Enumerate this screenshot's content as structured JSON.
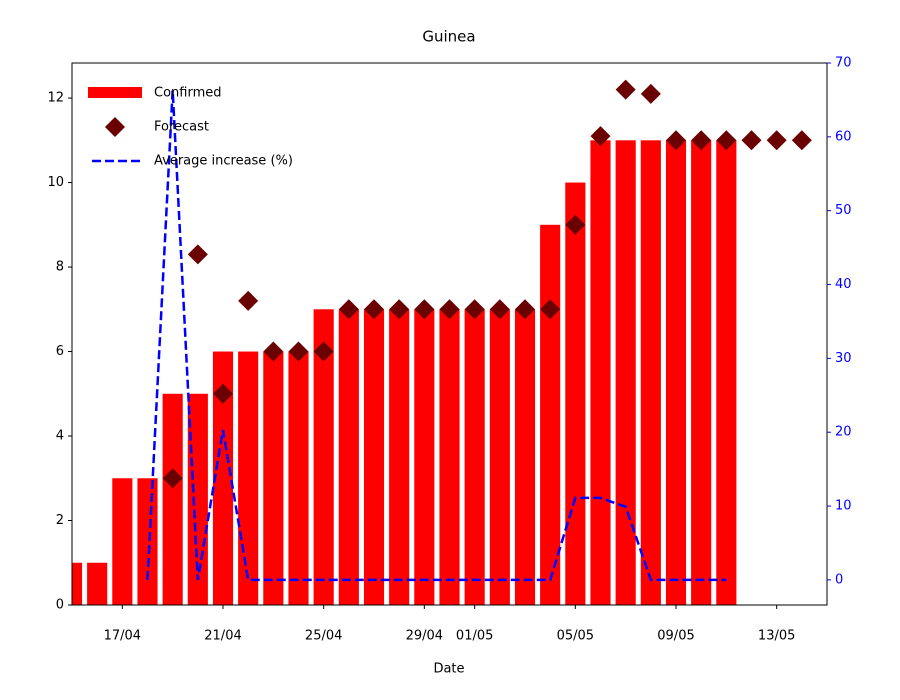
{
  "chart_data": {
    "type": "bar",
    "title": "Guinea",
    "xlabel": "Date",
    "x": [
      "15/04",
      "16/04",
      "17/04",
      "18/04",
      "19/04",
      "20/04",
      "21/04",
      "22/04",
      "23/04",
      "24/04",
      "25/04",
      "26/04",
      "27/04",
      "28/04",
      "29/04",
      "30/04",
      "01/05",
      "02/05",
      "03/05",
      "04/05",
      "05/05",
      "06/05",
      "07/05",
      "08/05",
      "09/05",
      "10/05",
      "11/05",
      "12/05",
      "13/05",
      "14/05"
    ],
    "series": [
      {
        "name": "Confirmed",
        "type": "bar",
        "color": "#ff0000",
        "values": [
          1,
          1,
          3,
          3,
          5,
          5,
          6,
          6,
          6,
          6,
          7,
          7,
          7,
          7,
          7,
          7,
          7,
          7,
          7,
          9,
          10,
          11,
          11,
          11,
          11,
          11,
          11,
          null,
          null,
          null
        ]
      },
      {
        "name": "Forecast",
        "type": "scatter",
        "color": "#6b0000",
        "values": [
          null,
          null,
          null,
          null,
          3,
          8.3,
          5,
          7.2,
          6,
          6,
          6,
          7,
          7,
          7,
          7,
          7,
          7,
          7,
          7,
          7,
          9,
          11.1,
          12.2,
          12.1,
          11,
          11,
          11,
          11,
          11,
          11
        ]
      },
      {
        "name": "Average increase (%)",
        "type": "line",
        "color": "#0000ff",
        "axis": "y2",
        "values": [
          null,
          null,
          null,
          0,
          66.3,
          0,
          20.3,
          0,
          0,
          0,
          0,
          0,
          0,
          0,
          0,
          0,
          0,
          0,
          0,
          0,
          11.1,
          11.1,
          9.9,
          0,
          0,
          0,
          0,
          null,
          null,
          null
        ]
      }
    ],
    "xlim": [
      "15/04",
      "15/05"
    ],
    "xticks": [
      "17/04",
      "21/04",
      "25/04",
      "29/04",
      "01/05",
      "05/05",
      "09/05",
      "13/05"
    ],
    "ylim": [
      0,
      12.83
    ],
    "yticks": [
      0,
      2,
      4,
      6,
      8,
      10,
      12
    ],
    "y2lim": [
      -3.4,
      70
    ],
    "y2ticks": [
      0,
      10,
      20,
      30,
      40,
      50,
      60,
      70
    ],
    "legend": "upper left"
  }
}
